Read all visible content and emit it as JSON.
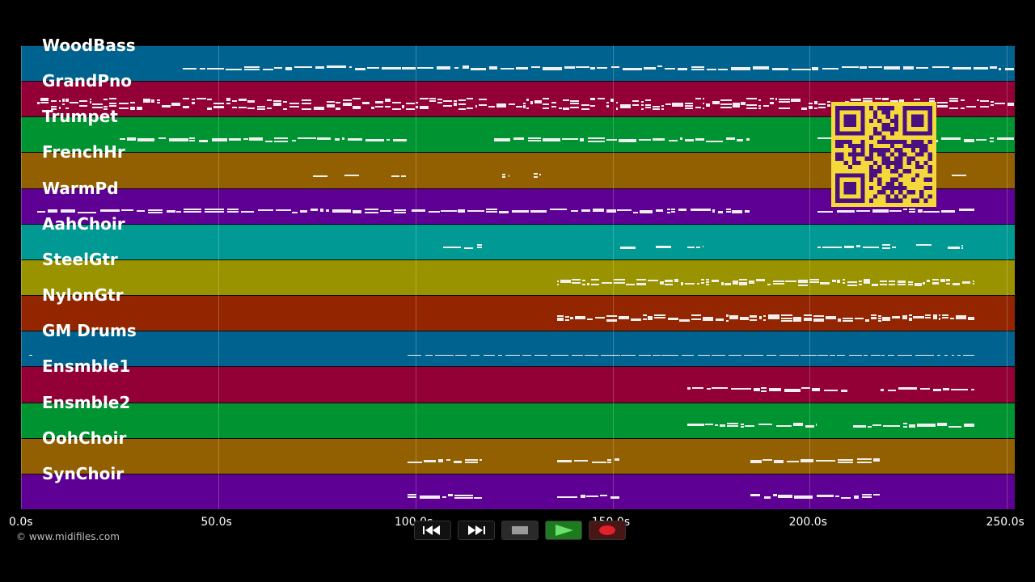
{
  "lanes": [
    {
      "name": "WoodBass",
      "color": "#00638f"
    },
    {
      "name": "GrandPno",
      "color": "#930036"
    },
    {
      "name": "Trumpet",
      "color": "#009331"
    },
    {
      "name": "FrenchHr",
      "color": "#936000"
    },
    {
      "name": "WarmPd",
      "color": "#5e0093"
    },
    {
      "name": "AahChoir",
      "color": "#009993"
    },
    {
      "name": "SteelGtr",
      "color": "#999300"
    },
    {
      "name": "NylonGtr",
      "color": "#932600"
    },
    {
      "name": "GM Drums",
      "color": "#00638f"
    },
    {
      "name": "Ensmble1",
      "color": "#930036"
    },
    {
      "name": "Ensmble2",
      "color": "#009331"
    },
    {
      "name": "OohChoir",
      "color": "#936000"
    },
    {
      "name": "SynChoir",
      "color": "#5e0093"
    }
  ],
  "timeline": {
    "min_seconds": 0,
    "max_seconds": 252,
    "ticks": [
      {
        "seconds": 0,
        "label": "0.0s"
      },
      {
        "seconds": 50,
        "label": "50.0s"
      },
      {
        "seconds": 100,
        "label": "100.0s"
      },
      {
        "seconds": 150,
        "label": "150.0s"
      },
      {
        "seconds": 200,
        "label": "200.0s"
      },
      {
        "seconds": 250,
        "label": "250.0s"
      }
    ]
  },
  "copyright": "© www.midifiles.com",
  "transport": {
    "rewind_icon": "rewind-icon",
    "fast_forward_icon": "fast-forward-icon",
    "stop_icon": "stop-icon",
    "play_icon": "play-icon",
    "record_icon": "record-icon",
    "play_color": "#1e7a1e",
    "record_color": "#e0202a"
  },
  "qr_code": {
    "icon": "qr-code-icon",
    "color": "#f5d83a",
    "dark": "#4a1080"
  },
  "note_activity": [
    {
      "lane": 0,
      "segments": [
        [
          41,
          252
        ]
      ]
    },
    {
      "lane": 1,
      "segments": [
        [
          4,
          252
        ]
      ]
    },
    {
      "lane": 2,
      "segments": [
        [
          25,
          98
        ],
        [
          120,
          185
        ],
        [
          202,
          252
        ]
      ]
    },
    {
      "lane": 3,
      "segments": [
        [
          74,
          78
        ],
        [
          82,
          86
        ],
        [
          94,
          98
        ],
        [
          122,
          124
        ],
        [
          130,
          132
        ],
        [
          236,
          240
        ]
      ]
    },
    {
      "lane": 4,
      "segments": [
        [
          4,
          98
        ],
        [
          99,
          185
        ],
        [
          202,
          242
        ]
      ]
    },
    {
      "lane": 5,
      "segments": [
        [
          107,
          117
        ],
        [
          152,
          156
        ],
        [
          161,
          165
        ],
        [
          169,
          173
        ],
        [
          202,
          222
        ],
        [
          227,
          231
        ],
        [
          235,
          239
        ]
      ]
    },
    {
      "lane": 6,
      "segments": [
        [
          136,
          242
        ]
      ]
    },
    {
      "lane": 7,
      "segments": [
        [
          136,
          242
        ]
      ]
    },
    {
      "lane": 8,
      "segments": [
        [
          2,
          3
        ],
        [
          98,
          242
        ]
      ]
    },
    {
      "lane": 9,
      "segments": [
        [
          169,
          210
        ],
        [
          218,
          242
        ]
      ]
    },
    {
      "lane": 10,
      "segments": [
        [
          169,
          202
        ],
        [
          211,
          242
        ]
      ]
    },
    {
      "lane": 11,
      "segments": [
        [
          98,
          117
        ],
        [
          136,
          152
        ],
        [
          185,
          218
        ]
      ]
    },
    {
      "lane": 12,
      "segments": [
        [
          98,
          117
        ],
        [
          136,
          152
        ],
        [
          185,
          218
        ]
      ]
    }
  ]
}
